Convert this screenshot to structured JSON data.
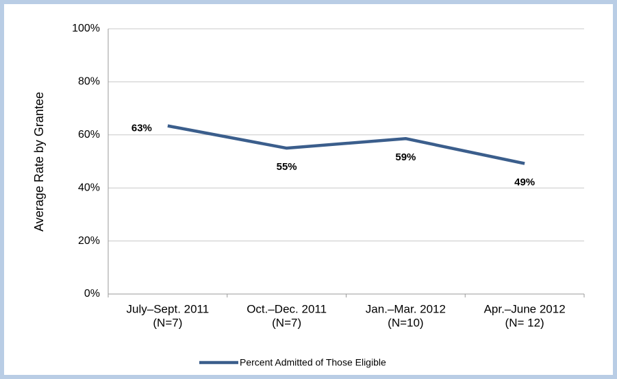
{
  "chart_data": {
    "type": "line",
    "y_label": "Average Rate by Grantee",
    "categories": [
      [
        "July–Sept. 2011",
        "(N=7)"
      ],
      [
        "Oct.–Dec. 2011",
        "(N=7)"
      ],
      [
        "Jan.–Mar. 2012",
        "(N=10)"
      ],
      [
        "Apr.–June 2012",
        "(N= 12)"
      ]
    ],
    "series": [
      {
        "name": "Percent Admitted of Those Eligible",
        "color": "#3b5e8c",
        "values": [
          63.4,
          55,
          58.6,
          49.2
        ],
        "value_labels": [
          "63%",
          "55%",
          "59%",
          "49%"
        ]
      }
    ],
    "ylim": [
      0,
      100
    ],
    "yticks": [
      {
        "value": 0,
        "label": "0%"
      },
      {
        "value": 20,
        "label": "20%"
      },
      {
        "value": 40,
        "label": "40%"
      },
      {
        "value": 60,
        "label": "60%"
      },
      {
        "value": 80,
        "label": "80%"
      },
      {
        "value": 100,
        "label": "100%"
      }
    ],
    "grid": true,
    "legend": "bottom"
  }
}
